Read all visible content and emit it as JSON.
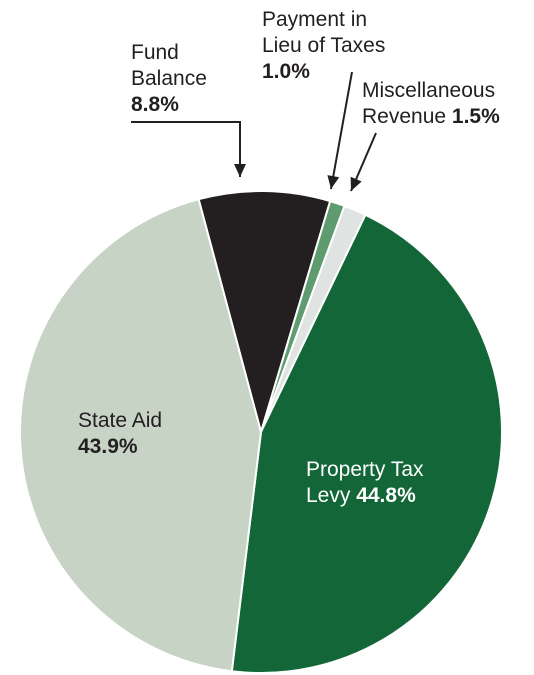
{
  "chart_data": {
    "type": "pie",
    "title": "",
    "slices": [
      {
        "key": "fund",
        "label_lines": [
          "Fund",
          "Balance"
        ],
        "value_text": "8.8%",
        "value": 8.8,
        "color": "#231f20"
      },
      {
        "key": "pilot",
        "label_lines": [
          "Payment in",
          "Lieu of Taxes"
        ],
        "value_text": "1.0%",
        "value": 1.0,
        "color": "#5e9b6f"
      },
      {
        "key": "misc",
        "label_lines": [
          "Miscellaneous",
          "Revenue"
        ],
        "value_text": "1.5%",
        "value": 1.5,
        "color": "#dfe3e1"
      },
      {
        "key": "prop",
        "label_lines": [
          "Property Tax",
          "Levy"
        ],
        "value_text": "44.8%",
        "value": 44.8,
        "color": "#126637"
      },
      {
        "key": "state",
        "label_lines": [
          "State Aid"
        ],
        "value_text": "43.9%",
        "value": 43.9,
        "color": "#c7d3c4"
      }
    ]
  }
}
